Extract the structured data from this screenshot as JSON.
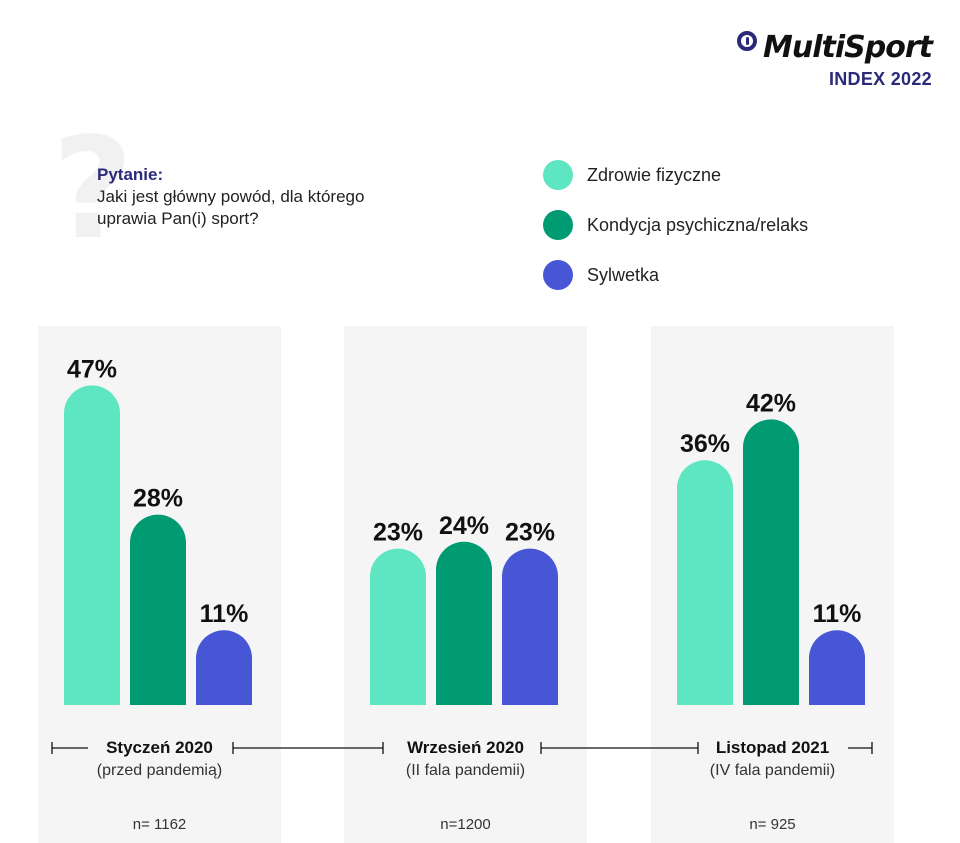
{
  "logo": {
    "brand": "MultiSport",
    "subtitle": "INDEX 2022"
  },
  "question": {
    "label": "Pytanie:",
    "text": "Jaki jest główny powód, dla którego uprawia Pan(i) sport?",
    "mark": "?"
  },
  "colors": {
    "zdrowie": "#5ee6c3",
    "kondycja": "#009a73",
    "sylwetka": "#4656d5",
    "panel": "#f5f5f5"
  },
  "legend": [
    {
      "label": "Zdrowie fizyczne",
      "color": "#5ee6c3"
    },
    {
      "label": "Kondycja psychiczna/relaks",
      "color": "#009a73"
    },
    {
      "label": "Sylwetka",
      "color": "#4656d5"
    }
  ],
  "periods": [
    {
      "name": "Styczeń 2020",
      "sub": "(przed pandemią)",
      "n": "n= 1162"
    },
    {
      "name": "Wrzesień 2020",
      "sub": "(II fala pandemii)",
      "n": "n=1200"
    },
    {
      "name": "Listopad 2021",
      "sub": "(IV fala pandemii)",
      "n": "n= 925"
    }
  ],
  "chart_data": {
    "type": "bar",
    "categories": [
      "Styczeń 2020",
      "Wrzesień 2020",
      "Listopad 2021"
    ],
    "series": [
      {
        "name": "Zdrowie fizyczne",
        "values": [
          47,
          23,
          36
        ],
        "labels": [
          "47%",
          "23%",
          "36%"
        ],
        "color": "#5ee6c3"
      },
      {
        "name": "Kondycja psychiczna/relaks",
        "values": [
          28,
          24,
          42
        ],
        "labels": [
          "28%",
          "24%",
          "42%"
        ],
        "color": "#009a73"
      },
      {
        "name": "Sylwetka",
        "values": [
          11,
          23,
          11
        ],
        "labels": [
          "11%",
          "23%",
          "11%"
        ],
        "color": "#4656d5"
      }
    ],
    "unit": "%",
    "ylim": [
      0,
      50
    ],
    "grid": false,
    "legend_position": "top-right"
  }
}
